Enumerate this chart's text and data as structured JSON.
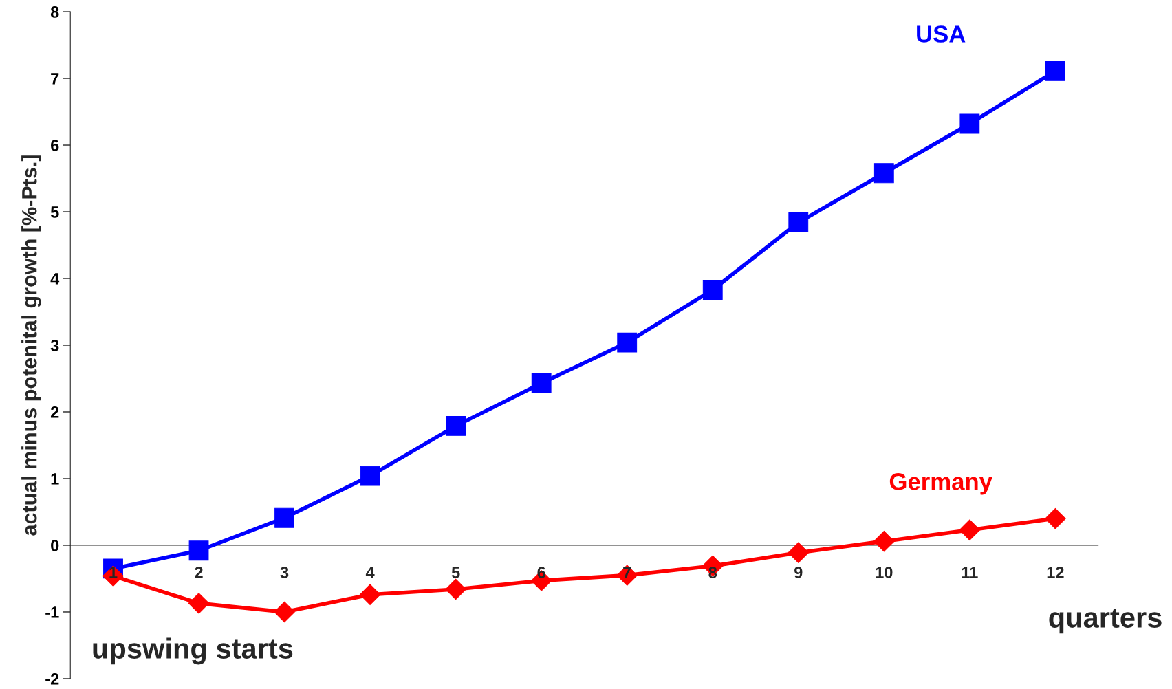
{
  "chart_data": {
    "type": "line",
    "ylabel": "actual minus potenital growth [%-Pts.]",
    "categories": [
      "1",
      "2",
      "3",
      "4",
      "5",
      "6",
      "7",
      "8",
      "9",
      "10",
      "11",
      "12"
    ],
    "series": [
      {
        "name": "USA",
        "color": "#0000ff",
        "marker": "square",
        "values": [
          -0.35,
          -0.08,
          0.41,
          1.04,
          1.79,
          2.43,
          3.04,
          3.83,
          4.84,
          5.58,
          6.32,
          7.11
        ]
      },
      {
        "name": "Germany",
        "color": "#ff0000",
        "marker": "diamond",
        "values": [
          -0.46,
          -0.87,
          -1.0,
          -0.74,
          -0.66,
          -0.53,
          -0.45,
          -0.31,
          -0.11,
          0.06,
          0.23,
          0.4
        ]
      }
    ],
    "ylim": [
      -2,
      8
    ],
    "yticks": [
      -2,
      -1,
      0,
      1,
      2,
      3,
      4,
      5,
      6,
      7,
      8
    ],
    "annotations": [
      "upswing starts",
      "quarters"
    ],
    "grid": false,
    "legend": false,
    "line_style": "solid"
  }
}
